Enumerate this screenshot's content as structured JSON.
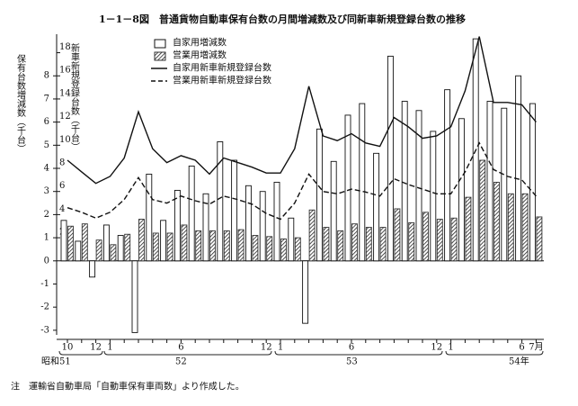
{
  "chart_data": {
    "type": "bar-line",
    "title": "1－1－8図　普通貨物自動車保有台数の月間増減数及び同新車新規登録台数の推移",
    "y_label": "保有台数増減数（千台）",
    "y2_label": "新車新規登録台数（千台）",
    "note": "注　運輸省自動車局「自動車保有車両数」より作成した。",
    "years": [
      "昭和51",
      "52",
      "53",
      "54年"
    ],
    "categories": [
      "10",
      null,
      "12",
      "1",
      null,
      null,
      null,
      null,
      "6",
      null,
      null,
      null,
      null,
      null,
      "12",
      "1",
      null,
      null,
      null,
      null,
      "6",
      null,
      null,
      null,
      null,
      null,
      "12",
      "1",
      null,
      null,
      null,
      null,
      "6",
      "7月"
    ],
    "series": [
      {
        "name": "自家用増減数",
        "kind": "bar",
        "color": "#ffffff",
        "values": [
          1.75,
          0.85,
          -0.7,
          1.55,
          1.1,
          -3.1,
          3.75,
          1.75,
          3.05,
          4.1,
          2.9,
          5.15,
          4.35,
          3.25,
          3.0,
          3.4,
          1.85,
          -2.7,
          5.7,
          4.3,
          6.3,
          6.8,
          4.65,
          8.85,
          6.9,
          6.5,
          5.6,
          7.4,
          6.15,
          9.6,
          6.9,
          6.6,
          8.0,
          6.8
        ]
      },
      {
        "name": "営業用増減数",
        "kind": "hatched-bar",
        "color": "#333333",
        "values": [
          1.5,
          1.6,
          0.9,
          0.7,
          1.15,
          1.8,
          1.2,
          1.2,
          1.55,
          1.3,
          1.3,
          1.3,
          1.35,
          1.1,
          1.05,
          0.95,
          1.0,
          2.2,
          1.45,
          1.3,
          1.6,
          1.45,
          1.45,
          2.25,
          1.65,
          2.1,
          1.8,
          1.85,
          2.75,
          4.35,
          3.4,
          2.9,
          2.9,
          1.9
        ]
      },
      {
        "name": "自家用新車新規登録台数",
        "kind": "line",
        "axis": "y2",
        "color": "#111111",
        "values": [
          8.7,
          7.7,
          6.7,
          7.3,
          8.9,
          12.9,
          9.7,
          8.5,
          9.1,
          8.7,
          7.5,
          8.9,
          8.5,
          8.1,
          7.6,
          7.6,
          9.7,
          15.1,
          10.8,
          10.4,
          11.0,
          10.2,
          9.9,
          12.4,
          11.6,
          10.6,
          10.8,
          11.6,
          14.7,
          19.4,
          13.7,
          13.7,
          13.5,
          12.0
        ]
      },
      {
        "name": "営業用新車新規登録台数",
        "kind": "dashed-line",
        "axis": "y2",
        "color": "#111111",
        "values": [
          4.6,
          4.2,
          3.7,
          4.2,
          5.3,
          7.2,
          5.3,
          5.0,
          5.6,
          5.2,
          4.9,
          5.6,
          5.3,
          4.9,
          4.1,
          3.6,
          5.0,
          7.5,
          6.0,
          5.8,
          6.2,
          5.95,
          5.6,
          7.1,
          6.6,
          6.2,
          5.8,
          5.8,
          7.7,
          10.2,
          7.9,
          7.3,
          7.0,
          5.6
        ]
      }
    ],
    "ylim": [
      -3.2,
      9.8
    ],
    "yticks": [
      -3,
      -2,
      -1,
      0,
      1,
      2,
      3,
      4,
      5,
      6,
      7,
      8
    ],
    "y2lim": [
      -6.4,
      19.6
    ],
    "y2ticks": [
      2,
      4,
      6,
      8,
      10,
      12,
      14,
      16,
      18
    ],
    "grid": false
  }
}
